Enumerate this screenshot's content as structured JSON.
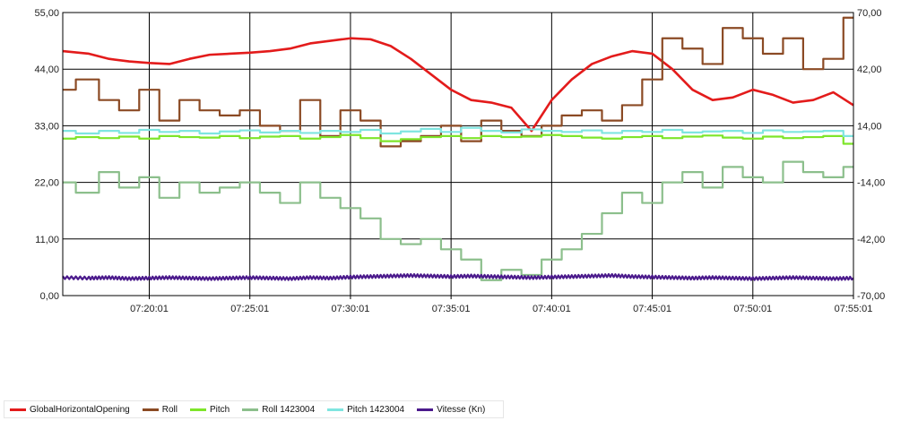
{
  "chart_data": {
    "type": "line",
    "left_axis": {
      "ticks": [
        "55,00",
        "44,00",
        "33,00",
        "22,00",
        "11,00",
        "0,00"
      ],
      "range": [
        0,
        55
      ]
    },
    "right_axis": {
      "ticks": [
        "70,00",
        "42,00",
        "14,00",
        "-14,00",
        "-42,00",
        "-70,00"
      ],
      "range": [
        -70,
        70
      ]
    },
    "x_ticks": [
      "07:20:01",
      "07:25:01",
      "07:30:01",
      "07:35:01",
      "07:40:01",
      "07:45:01",
      "07:50:01",
      "07:55:01"
    ],
    "x_range_minutes": [
      -4.3,
      35.0
    ],
    "grid": true,
    "legend_position": "bottom-left",
    "series": [
      {
        "name": "GlobalHorizontalOpening",
        "color": "#e31b1b",
        "axis": "left",
        "style": "smooth",
        "x": [
          -4.3,
          -3,
          -2,
          -1,
          0,
          1,
          2,
          3,
          4,
          5,
          6,
          7,
          8,
          9,
          10,
          11,
          12,
          13,
          14,
          15,
          16,
          17,
          18,
          19,
          20,
          21,
          22,
          23,
          24,
          25,
          26,
          27,
          28,
          29,
          30,
          31,
          32,
          33,
          34,
          35
        ],
        "values": [
          47.5,
          47,
          46,
          45.5,
          45.2,
          45,
          46,
          46.8,
          47,
          47.2,
          47.5,
          48,
          49,
          49.5,
          50,
          49.8,
          48.5,
          46,
          43,
          40,
          38,
          37.5,
          36.5,
          32,
          38,
          42,
          45,
          46.5,
          47.5,
          47,
          44,
          40,
          38,
          38.5,
          40,
          39,
          37.5,
          38,
          39.5,
          37
        ]
      },
      {
        "name": "Roll",
        "color": "#8b4a24",
        "axis": "left",
        "style": "step",
        "x": [
          -4.3,
          -3,
          -2,
          -1,
          0,
          1,
          2,
          3,
          4,
          5,
          6,
          7,
          8,
          9,
          10,
          11,
          12,
          13,
          14,
          15,
          16,
          17,
          18,
          19,
          20,
          21,
          22,
          23,
          24,
          25,
          26,
          27,
          28,
          29,
          30,
          31,
          32,
          33,
          34,
          35
        ],
        "values": [
          40,
          42,
          38,
          36,
          40,
          34,
          38,
          36,
          35,
          36,
          33,
          32,
          38,
          31,
          36,
          34,
          29,
          30,
          31,
          33,
          30,
          34,
          32,
          31,
          33,
          35,
          36,
          34,
          37,
          42,
          50,
          48,
          45,
          52,
          50,
          47,
          50,
          44,
          46,
          54
        ]
      },
      {
        "name": "Pitch",
        "color": "#7ee52a",
        "axis": "left",
        "style": "step",
        "x": [
          -4.3,
          -3,
          -2,
          -1,
          0,
          1,
          2,
          3,
          4,
          5,
          6,
          7,
          8,
          9,
          10,
          11,
          12,
          13,
          14,
          15,
          16,
          17,
          18,
          19,
          20,
          21,
          22,
          23,
          24,
          25,
          26,
          27,
          28,
          29,
          30,
          31,
          32,
          33,
          34,
          35
        ],
        "values": [
          30.5,
          30.8,
          30.6,
          30.9,
          30.5,
          31,
          30.8,
          30.7,
          31,
          30.6,
          30.9,
          31,
          30.5,
          30.8,
          31.2,
          30.6,
          30,
          30.4,
          30.8,
          31,
          30.6,
          31,
          30.8,
          30.9,
          31.2,
          31,
          30.7,
          30.5,
          30.8,
          31,
          30.6,
          30.9,
          31.1,
          30.7,
          30.5,
          30.9,
          30.6,
          30.8,
          31,
          29.5
        ]
      },
      {
        "name": "Roll 1423004",
        "color": "#8cbf8c",
        "axis": "left",
        "style": "step",
        "x": [
          -4.3,
          -3,
          -2,
          -1,
          0,
          1,
          2,
          3,
          4,
          5,
          6,
          7,
          8,
          9,
          10,
          11,
          12,
          13,
          14,
          15,
          16,
          17,
          18,
          19,
          20,
          21,
          22,
          23,
          24,
          25,
          26,
          27,
          28,
          29,
          30,
          31,
          32,
          33,
          34,
          35
        ],
        "values": [
          22,
          20,
          24,
          21,
          23,
          19,
          22,
          20,
          21,
          22,
          20,
          18,
          22,
          19,
          17,
          15,
          11,
          10,
          11,
          9,
          7,
          3,
          5,
          4,
          7,
          9,
          12,
          16,
          20,
          18,
          22,
          24,
          21,
          25,
          23,
          22,
          26,
          24,
          23,
          25
        ]
      },
      {
        "name": "Pitch 1423004",
        "color": "#7fe5e0",
        "axis": "left",
        "style": "step",
        "x": [
          -4.3,
          -3,
          -2,
          -1,
          0,
          1,
          2,
          3,
          4,
          5,
          6,
          7,
          8,
          9,
          10,
          11,
          12,
          13,
          14,
          15,
          16,
          17,
          18,
          19,
          20,
          21,
          22,
          23,
          24,
          25,
          26,
          27,
          28,
          29,
          30,
          31,
          32,
          33,
          34,
          35
        ],
        "values": [
          32,
          31.5,
          32,
          31.6,
          32.2,
          31.8,
          32,
          31.5,
          31.9,
          32.1,
          31.7,
          32,
          31.6,
          32,
          31.8,
          32.2,
          31.5,
          31.9,
          32.4,
          31.8,
          32.6,
          32,
          31.7,
          32.3,
          32,
          31.8,
          32.1,
          31.6,
          32,
          31.8,
          32.2,
          31.7,
          31.9,
          32,
          31.6,
          32.1,
          31.8,
          31.9,
          32,
          31
        ]
      },
      {
        "name": "Vitesse (Kn)",
        "color": "#4b1a8c",
        "axis": "left",
        "style": "noisy",
        "x": [
          -4.3,
          -3,
          -2,
          -1,
          0,
          1,
          2,
          3,
          4,
          5,
          6,
          7,
          8,
          9,
          10,
          11,
          12,
          13,
          14,
          15,
          16,
          17,
          18,
          19,
          20,
          21,
          22,
          23,
          24,
          25,
          26,
          27,
          28,
          29,
          30,
          31,
          32,
          33,
          34,
          35
        ],
        "values": [
          3.5,
          3.4,
          3.5,
          3.3,
          3.4,
          3.5,
          3.4,
          3.3,
          3.4,
          3.5,
          3.4,
          3.3,
          3.5,
          3.4,
          3.6,
          3.7,
          3.8,
          3.9,
          3.8,
          3.7,
          3.8,
          3.7,
          3.6,
          3.5,
          3.6,
          3.7,
          3.8,
          3.9,
          3.7,
          3.6,
          3.5,
          3.4,
          3.5,
          3.4,
          3.3,
          3.4,
          3.5,
          3.4,
          3.3,
          3.4
        ]
      }
    ]
  }
}
